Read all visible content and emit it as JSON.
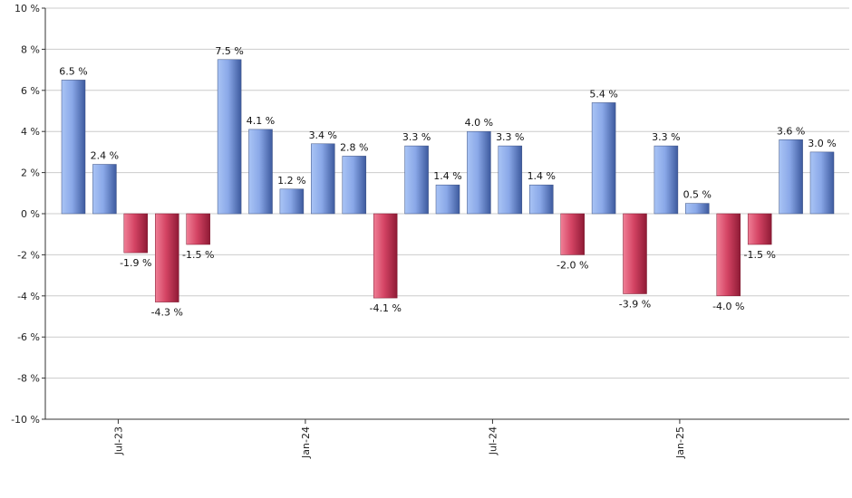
{
  "chart_data": {
    "type": "bar",
    "title": "",
    "xlabel": "",
    "ylabel": "",
    "ylim": [
      -10,
      10
    ],
    "yticks": [
      10,
      8,
      6,
      4,
      2,
      0,
      -2,
      -4,
      -6,
      -8,
      -10
    ],
    "ytick_labels": [
      "10 %",
      "8 %",
      "6 %",
      "4 %",
      "2 %",
      "0 %",
      "-2 %",
      "-4 %",
      "-6 %",
      "-8 %",
      "-10 %"
    ],
    "grid": true,
    "x_tick_labels": [
      {
        "label": "Jul-23",
        "index": 1
      },
      {
        "label": "Jan-24",
        "index": 7
      },
      {
        "label": "Jul-24",
        "index": 13
      },
      {
        "label": "Jan-25",
        "index": 19
      }
    ],
    "values": [
      6.5,
      2.4,
      -1.9,
      -4.3,
      -1.5,
      7.5,
      4.1,
      1.2,
      3.4,
      2.8,
      -4.1,
      3.3,
      1.4,
      4.0,
      3.3,
      1.4,
      -2.0,
      5.4,
      -3.9,
      3.3,
      0.5,
      -4.0,
      -1.5,
      3.6,
      3.0
    ],
    "data_labels": [
      "6.5 %",
      "2.4 %",
      "-1.9 %",
      "-4.3 %",
      "-1.5 %",
      "7.5 %",
      "4.1 %",
      "1.2 %",
      "3.4 %",
      "2.8 %",
      "-4.1 %",
      "3.3 %",
      "1.4 %",
      "4.0 %",
      "3.3 %",
      "1.4 %",
      "-2.0 %",
      "5.4 %",
      "-3.9 %",
      "3.3 %",
      "0.5 %",
      "-4.0 %",
      "-1.5 %",
      "3.6 %",
      "3.0 %"
    ],
    "colors": {
      "positive_light": "#a9c4f5",
      "positive_dark": "#3d5a9e",
      "negative_light": "#f07f96",
      "negative_dark": "#8e1a35",
      "grid": "#cccccc",
      "axis": "#333333"
    }
  }
}
